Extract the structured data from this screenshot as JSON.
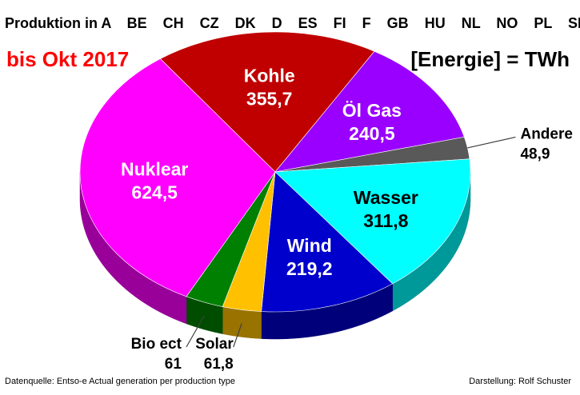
{
  "header": {
    "title": "Produktion in A    BE    CH    CZ    DK    D    ES    FI    F    GB    HU    NL    NO    PL    SE",
    "period": "bis Okt 2017",
    "unit": "[Energie] = TWh"
  },
  "footer": {
    "source": "Datenquelle: Entso-e  Actual generation per production type",
    "author": "Darstellung: Rolf Schuster"
  },
  "chart_data": {
    "type": "pie",
    "title": "Produktion in A    BE    CH    CZ    DK    D    ES    FI    F    GB    HU    NL    NO    PL    SE",
    "slices": [
      {
        "label": "Kohle",
        "value": 355.7,
        "value_text": "355,7",
        "color": "#c00000"
      },
      {
        "label": "Öl Gas",
        "value": 240.5,
        "value_text": "240,5",
        "color": "#9900ff"
      },
      {
        "label": "Andere",
        "value": 48.9,
        "value_text": "48,9",
        "color": "#595959"
      },
      {
        "label": "Wasser",
        "value": 311.8,
        "value_text": "311,8",
        "color": "#00ffff"
      },
      {
        "label": "Wind",
        "value": 219.2,
        "value_text": "219,2",
        "color": "#0000cc"
      },
      {
        "label": "Solar",
        "value": 61.8,
        "value_text": "61,8",
        "color": "#ffc000"
      },
      {
        "label": "Bio ect",
        "value": 61,
        "value_text": "61",
        "color": "#008000"
      },
      {
        "label": "Nuklear",
        "value": 624.5,
        "value_text": "624,5",
        "color": "#ff00ff"
      }
    ]
  }
}
